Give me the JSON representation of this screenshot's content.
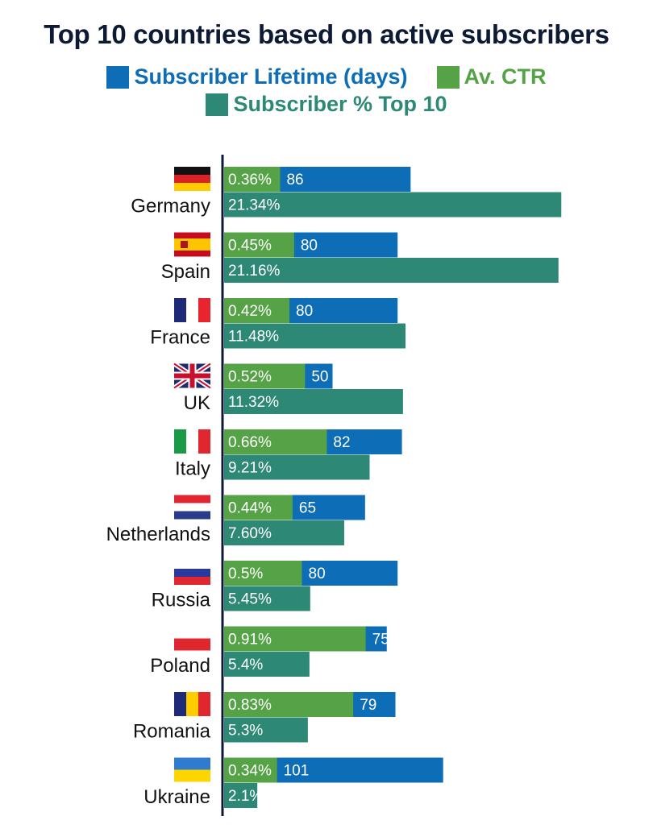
{
  "colors": {
    "lifetime": "#0d6db6",
    "ctr": "#55a346",
    "share": "#2e8876",
    "axis": "#0c1a33"
  },
  "chart_data": {
    "type": "bar",
    "orientation": "horizontal",
    "title": "Top 10 countries based on active subscribers",
    "legend_placement": "top",
    "grid": false,
    "categories": [
      "Germany",
      "Spain",
      "France",
      "UK",
      "Italy",
      "Netherlands",
      "Russia",
      "Poland",
      "Romania",
      "Ukraine"
    ],
    "series": [
      {
        "name": "Subscriber Lifetime (days)",
        "color_key": "lifetime",
        "values": [
          86,
          80,
          80,
          50,
          82,
          65,
          80,
          75,
          79,
          101
        ],
        "labels": [
          "86",
          "80",
          "80",
          "50",
          "82",
          "65",
          "80",
          "75",
          "79",
          "101"
        ]
      },
      {
        "name": "Av. CTR",
        "color_key": "ctr",
        "values": [
          0.36,
          0.45,
          0.42,
          0.52,
          0.66,
          0.44,
          0.5,
          0.91,
          0.83,
          0.34
        ],
        "labels": [
          "0.36%",
          "0.45%",
          "0.42%",
          "0.52%",
          "0.66%",
          "0.44%",
          "0.5%",
          "0.91%",
          "0.83%",
          "0.34%"
        ]
      },
      {
        "name": "Subscriber % Top 10",
        "color_key": "share",
        "values": [
          21.34,
          21.16,
          11.48,
          11.32,
          9.21,
          7.6,
          5.45,
          5.4,
          5.3,
          2.1
        ],
        "labels": [
          "21.34%",
          "21.16%",
          "11.48%",
          "11.32%",
          "9.21%",
          "7.60%",
          "5.45%",
          "5.4%",
          "5.3%",
          "2.1%"
        ]
      }
    ],
    "flags": [
      "germany-flag-icon",
      "spain-flag-icon",
      "france-flag-icon",
      "uk-flag-icon",
      "italy-flag-icon",
      "netherlands-flag-icon",
      "russia-flag-icon",
      "poland-flag-icon",
      "romania-flag-icon",
      "ukraine-flag-icon"
    ]
  }
}
